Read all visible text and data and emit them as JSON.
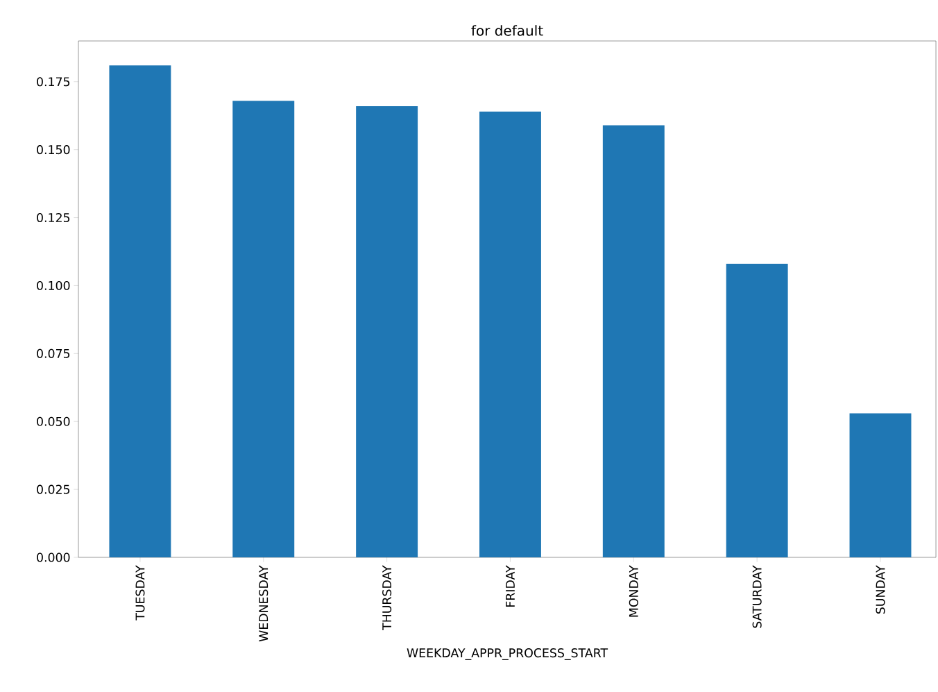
{
  "chart_data": {
    "type": "bar",
    "title": "for default",
    "xlabel": "WEEKDAY_APPR_PROCESS_START",
    "categories": [
      "TUESDAY",
      "WEDNESDAY",
      "THURSDAY",
      "FRIDAY",
      "MONDAY",
      "SATURDAY",
      "SUNDAY"
    ],
    "values": [
      0.181,
      0.168,
      0.166,
      0.164,
      0.159,
      0.108,
      0.053
    ],
    "color": "#1f77b4",
    "ylim": [
      0,
      0.19
    ],
    "yticks": [
      {
        "value": 0,
        "label": "0.000"
      },
      {
        "value": 0.025,
        "label": "0.025"
      },
      {
        "value": 0.05,
        "label": "0.050"
      },
      {
        "value": 0.075,
        "label": "0.075"
      },
      {
        "value": 0.1,
        "label": "0.100"
      },
      {
        "value": 0.125,
        "label": "0.125"
      },
      {
        "value": 0.15,
        "label": "0.150"
      },
      {
        "value": 0.175,
        "label": "0.175"
      }
    ],
    "grid": false
  }
}
